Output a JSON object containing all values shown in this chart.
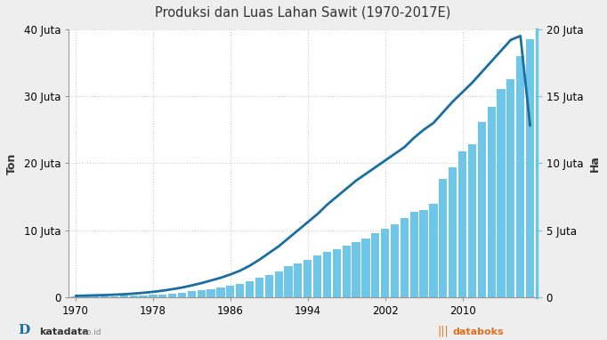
{
  "title": "Produksi dan Luas Lahan Sawit (1970-2017E)",
  "years": [
    1970,
    1971,
    1972,
    1973,
    1974,
    1975,
    1976,
    1977,
    1978,
    1979,
    1980,
    1981,
    1982,
    1983,
    1984,
    1985,
    1986,
    1987,
    1988,
    1989,
    1990,
    1991,
    1992,
    1993,
    1994,
    1995,
    1996,
    1997,
    1998,
    1999,
    2000,
    2001,
    2002,
    2003,
    2004,
    2005,
    2006,
    2007,
    2008,
    2009,
    2010,
    2011,
    2012,
    2013,
    2014,
    2015,
    2016,
    2017
  ],
  "production": [
    100000,
    110000,
    130000,
    150000,
    170000,
    200000,
    240000,
    280000,
    350000,
    430000,
    580000,
    700000,
    870000,
    1000000,
    1200000,
    1400000,
    1700000,
    2000000,
    2400000,
    2900000,
    3300000,
    3900000,
    4600000,
    5000000,
    5600000,
    6200000,
    6700000,
    7200000,
    7700000,
    8200000,
    8800000,
    9600000,
    10200000,
    10900000,
    11800000,
    12700000,
    13000000,
    13900000,
    17600000,
    19400000,
    21800000,
    22900000,
    26200000,
    28400000,
    31100000,
    32500000,
    36000000,
    38500000
  ],
  "land_area": [
    100000,
    120000,
    140000,
    160000,
    190000,
    220000,
    270000,
    330000,
    400000,
    490000,
    600000,
    720000,
    880000,
    1050000,
    1250000,
    1450000,
    1700000,
    1980000,
    2350000,
    2800000,
    3300000,
    3800000,
    4400000,
    5000000,
    5600000,
    6200000,
    6900000,
    7500000,
    8100000,
    8700000,
    9200000,
    9700000,
    10200000,
    10700000,
    11200000,
    11900000,
    12500000,
    13000000,
    13800000,
    14600000,
    15300000,
    16000000,
    16800000,
    17600000,
    18400000,
    19200000,
    19500000,
    12800000
  ],
  "bar_color": "#6ec6e8",
  "line_color": "#1a6ea0",
  "background_color": "#eeeeee",
  "plot_background": "#ffffff",
  "ylabel_left": "Ton",
  "ylabel_right": "Ha",
  "ylim_left": [
    0,
    40000000
  ],
  "ylim_right": [
    0,
    20000000
  ],
  "yticks_left": [
    0,
    10000000,
    20000000,
    30000000,
    40000000
  ],
  "yticks_right": [
    0,
    5000000,
    10000000,
    15000000,
    20000000
  ],
  "ytick_labels_left": [
    "0",
    "10 Juta",
    "20 Juta",
    "30 Juta",
    "40 Juta"
  ],
  "ytick_labels_right": [
    "0",
    "5 Juta",
    "10 Juta",
    "15 Juta",
    "20 Juta"
  ],
  "xticks": [
    1970,
    1978,
    1986,
    1994,
    2002,
    2010
  ],
  "grid_color": "#cccccc",
  "title_fontsize": 10.5,
  "tick_fontsize": 8.5,
  "axis_label_fontsize": 9
}
